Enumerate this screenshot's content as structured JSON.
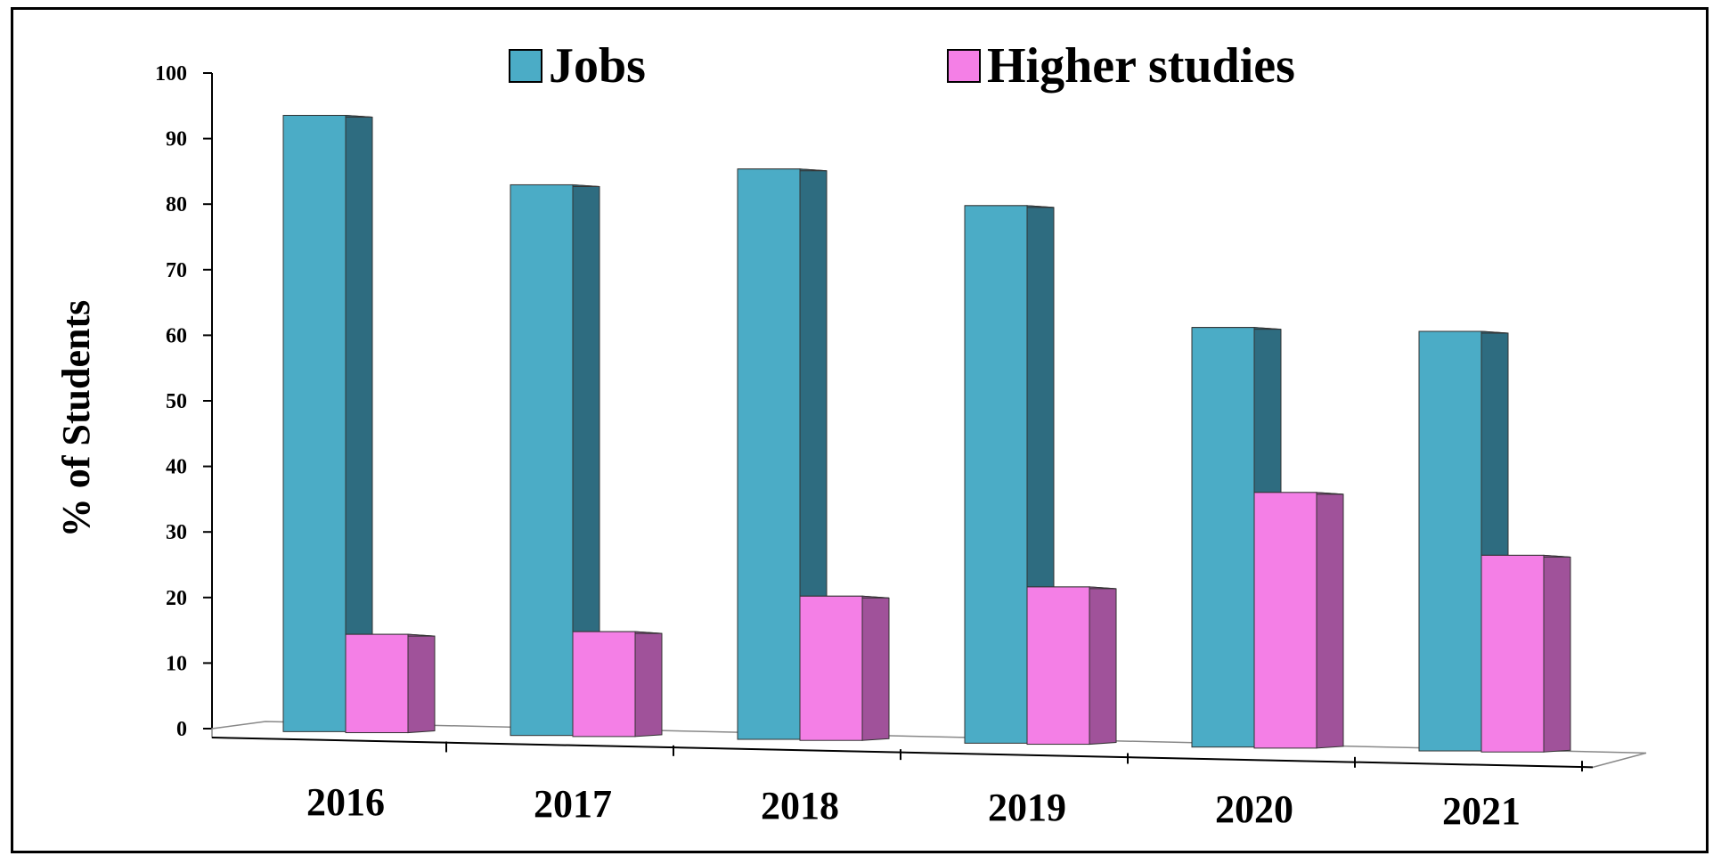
{
  "chart_data": {
    "type": "bar",
    "title": "",
    "xlabel": "",
    "ylabel": "% of Students",
    "ylim": [
      0,
      100
    ],
    "yticks": [
      0,
      10,
      20,
      30,
      40,
      50,
      60,
      70,
      80,
      90,
      100
    ],
    "categories": [
      "2016",
      "2017",
      "2018",
      "2019",
      "2020",
      "2021"
    ],
    "series": [
      {
        "name": "Jobs",
        "values": [
          94,
          84,
          87,
          82,
          64,
          64
        ],
        "color": "#4BACC6",
        "side_color": "#2E6C80"
      },
      {
        "name": "Higher studies",
        "values": [
          15,
          16,
          22,
          24,
          39,
          30
        ],
        "color": "#F47FE6",
        "side_color": "#A0529A"
      }
    ],
    "legend_position": "top",
    "grid": false,
    "style": "3d-column"
  }
}
